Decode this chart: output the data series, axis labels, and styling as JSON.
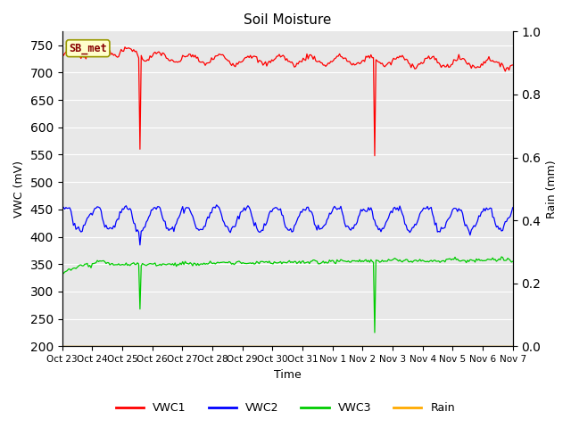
{
  "title": "Soil Moisture",
  "xlabel": "Time",
  "ylabel_left": "VWC (mV)",
  "ylabel_right": "Rain (mm)",
  "ylim_left": [
    200,
    775
  ],
  "ylim_right": [
    0.0,
    1.0
  ],
  "yticks_left": [
    200,
    250,
    300,
    350,
    400,
    450,
    500,
    550,
    600,
    650,
    700,
    750
  ],
  "yticks_right": [
    0.0,
    0.2,
    0.4,
    0.6,
    0.8,
    1.0
  ],
  "annotation_label": "SB_met",
  "annotation_box_facecolor": "#ffffcc",
  "annotation_box_edgecolor": "#999900",
  "annotation_text_color": "#880000",
  "line_colors": {
    "VWC1": "#ff0000",
    "VWC2": "#0000ff",
    "VWC3": "#00cc00",
    "Rain": "#ffaa00"
  },
  "legend_labels": [
    "VWC1",
    "VWC2",
    "VWC3",
    "Rain"
  ],
  "num_points": 360,
  "vwc1_base": 725,
  "vwc2_base": 432,
  "vwc3_base": 348,
  "background_color": "#e8e8e8",
  "grid_color": "#ffffff",
  "xtick_labels": [
    "Oct 23",
    "Oct 24",
    "Oct 25",
    "Oct 26",
    "Oct 27",
    "Oct 28",
    "Oct 29",
    "Oct 30",
    "Oct 31",
    "Nov 1",
    "Nov 2",
    "Nov 3",
    "Nov 4",
    "Nov 5",
    "Nov 6",
    "Nov 7"
  ],
  "spike1_day": 2.6,
  "spike2_day": 10.4
}
